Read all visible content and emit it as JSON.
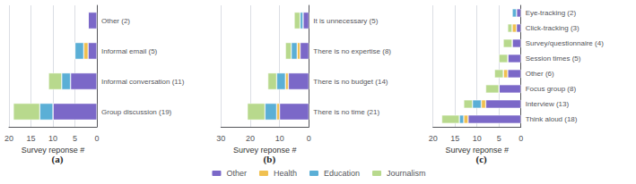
{
  "chart_data": [
    {
      "type": "bar",
      "orientation": "horizontal",
      "stacked": true,
      "title": "(a)",
      "xlabel": "Survey reponse #",
      "categories": [
        "Other (2)",
        "Informal email (5)",
        "Informal conversation (11)",
        "Group discussion (19)"
      ],
      "series": [
        {
          "name": "Other",
          "color": "#7B68C8",
          "values": [
            2,
            2,
            6,
            10
          ]
        },
        {
          "name": "Health",
          "color": "#F0C050",
          "values": [
            0,
            1,
            0,
            0
          ]
        },
        {
          "name": "Education",
          "color": "#5BAFD6",
          "values": [
            0,
            2,
            2,
            3
          ]
        },
        {
          "name": "Journalism",
          "color": "#B8D98D",
          "values": [
            0,
            0,
            3,
            6
          ]
        }
      ],
      "xlim": [
        20,
        0
      ],
      "xticks": [
        20,
        15,
        10,
        5,
        0
      ],
      "grid": true,
      "legend": "bottom"
    },
    {
      "type": "bar",
      "orientation": "horizontal",
      "stacked": true,
      "title": "(b)",
      "xlabel": "Survey reponse #",
      "categories": [
        "It is unnecessary (5)",
        "There is no expertise (8)",
        "There is no budget (14)",
        "There is no time (21)"
      ],
      "series": [
        {
          "name": "Other",
          "color": "#7B68C8",
          "values": [
            2,
            3,
            7,
            10
          ]
        },
        {
          "name": "Health",
          "color": "#F0C050",
          "values": [
            0,
            1,
            1,
            1
          ]
        },
        {
          "name": "Education",
          "color": "#5BAFD6",
          "values": [
            1,
            2,
            3,
            4
          ]
        },
        {
          "name": "Journalism",
          "color": "#B8D98D",
          "values": [
            2,
            2,
            3,
            6
          ]
        }
      ],
      "xlim": [
        30,
        0
      ],
      "xticks": [
        30,
        20,
        10,
        0
      ],
      "grid": true
    },
    {
      "type": "bar",
      "orientation": "horizontal",
      "stacked": true,
      "title": "(c)",
      "xlabel": "Survey reponse #",
      "categories": [
        "Eye-tracking (2)",
        "Click-tracking (3)",
        "Survey/questionnaire (4)",
        "Session times (5)",
        "Other (6)",
        "Focus group (8)",
        "Interview (13)",
        "Think aloud (18)"
      ],
      "series": [
        {
          "name": "Other",
          "color": "#7B68C8",
          "values": [
            1,
            1,
            2,
            3,
            3,
            5,
            8,
            12
          ]
        },
        {
          "name": "Health",
          "color": "#F0C050",
          "values": [
            0,
            1,
            0,
            0,
            1,
            0,
            1,
            1
          ]
        },
        {
          "name": "Education",
          "color": "#5BAFD6",
          "values": [
            1,
            0,
            0,
            0,
            0,
            0,
            2,
            1
          ]
        },
        {
          "name": "Journalism",
          "color": "#B8D98D",
          "values": [
            0,
            1,
            2,
            2,
            2,
            3,
            2,
            4
          ]
        }
      ],
      "xlim": [
        20,
        0
      ],
      "xticks": [
        20,
        15,
        10,
        5,
        0
      ],
      "grid": true
    }
  ]
}
